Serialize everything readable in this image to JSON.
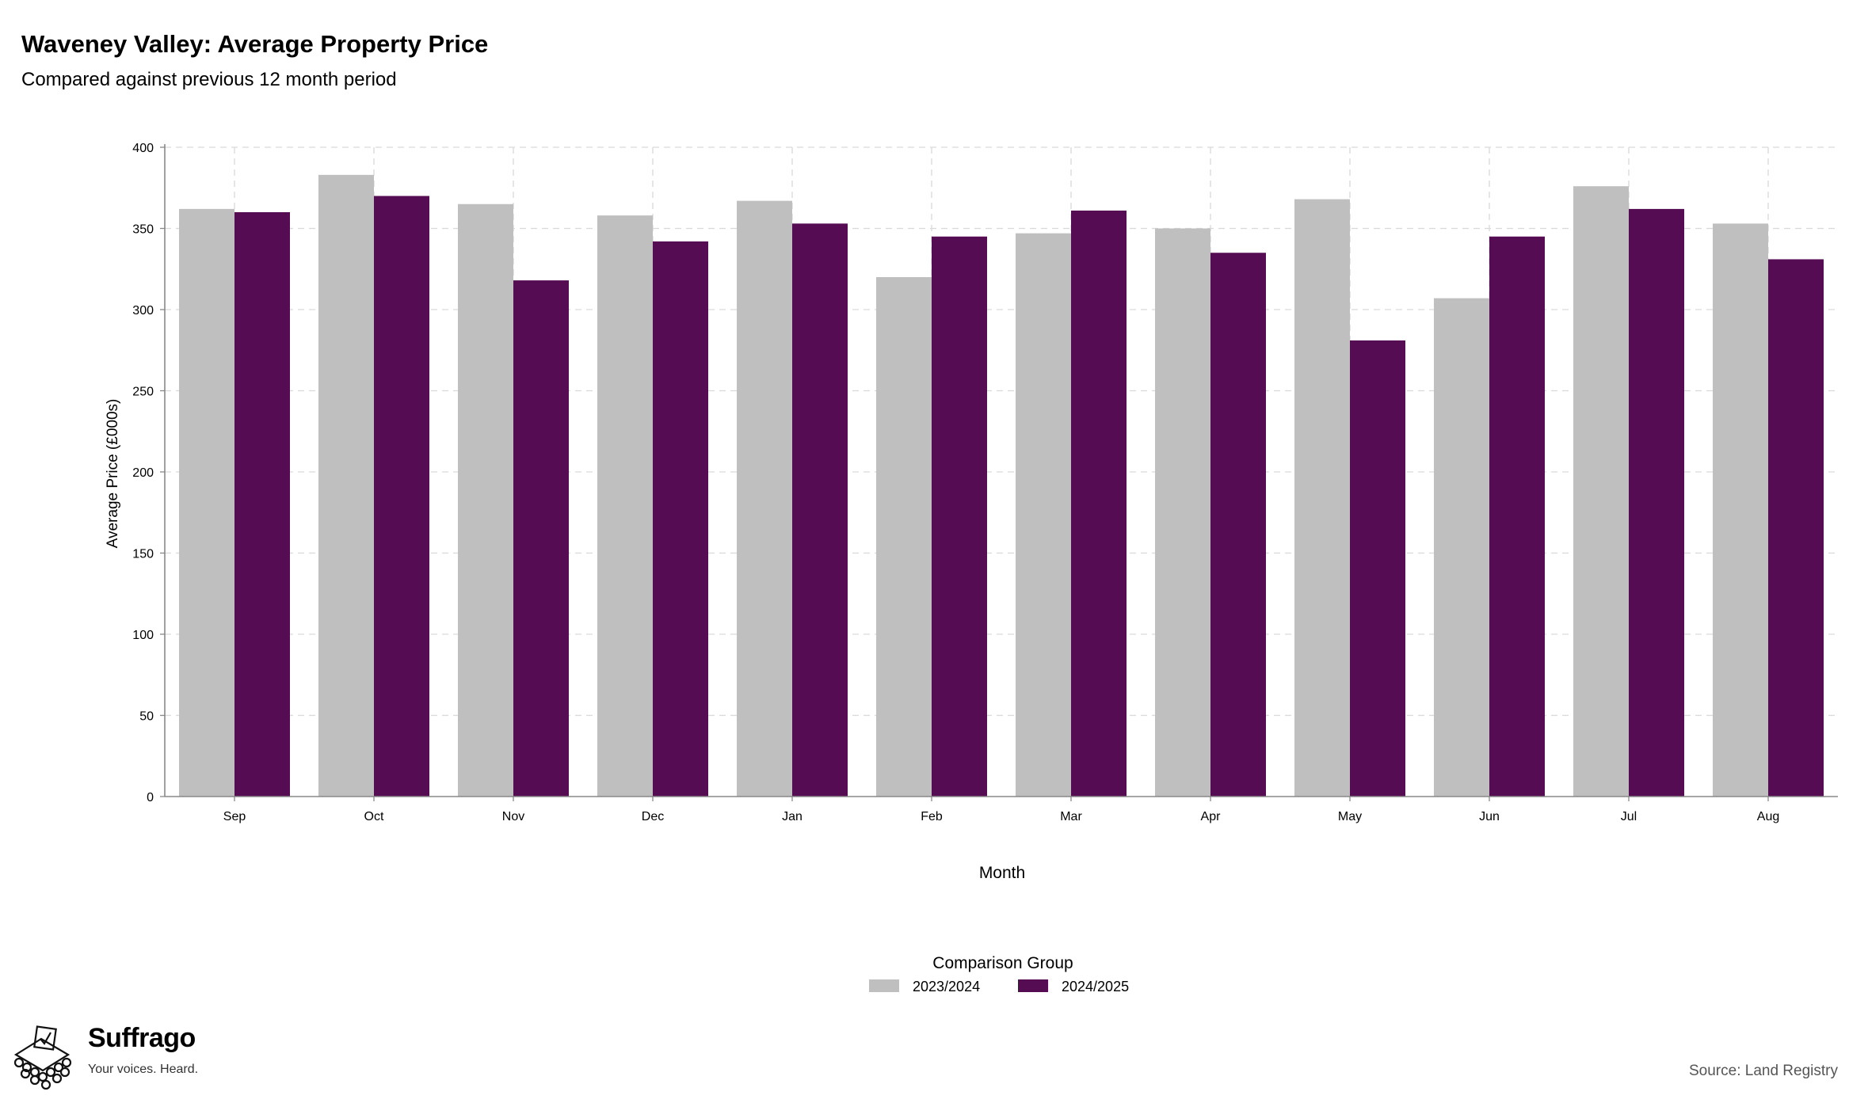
{
  "header": {
    "title": "Waveney Valley: Average Property Price",
    "subtitle": "Compared against previous 12 month period"
  },
  "chart_data": {
    "type": "bar",
    "title": "Waveney Valley: Average Property Price",
    "subtitle": "Compared against previous 12 month period",
    "xlabel": "Month",
    "ylabel": "Average Price (£000s)",
    "ylim": [
      0,
      400
    ],
    "yticks": [
      0,
      50,
      100,
      150,
      200,
      250,
      300,
      350,
      400
    ],
    "grid": true,
    "categories": [
      "Sep",
      "Oct",
      "Nov",
      "Dec",
      "Jan",
      "Feb",
      "Mar",
      "Apr",
      "May",
      "Jun",
      "Jul",
      "Aug"
    ],
    "legend": {
      "title": "Comparison Group",
      "position": "bottom"
    },
    "series": [
      {
        "name": "2023/2024",
        "color": "#bfbfbf",
        "values": [
          362,
          383,
          365,
          358,
          367,
          320,
          347,
          350,
          368,
          307,
          376,
          353
        ]
      },
      {
        "name": "2024/2025",
        "color": "#560c52",
        "values": [
          360,
          370,
          318,
          342,
          353,
          345,
          361,
          335,
          281,
          345,
          362,
          331
        ]
      }
    ]
  },
  "footer": {
    "brand_name": "Suffrago",
    "brand_tagline": "Your voices. Heard.",
    "source": "Source: Land Registry"
  }
}
